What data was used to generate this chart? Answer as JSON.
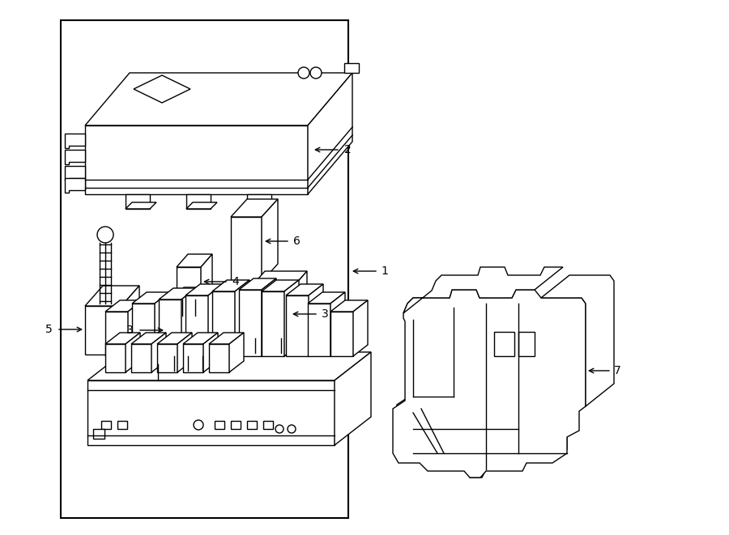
{
  "bg_color": "#ffffff",
  "line_color": "#000000",
  "fig_width": 9.0,
  "fig_height": 6.61,
  "lw": 1.0
}
